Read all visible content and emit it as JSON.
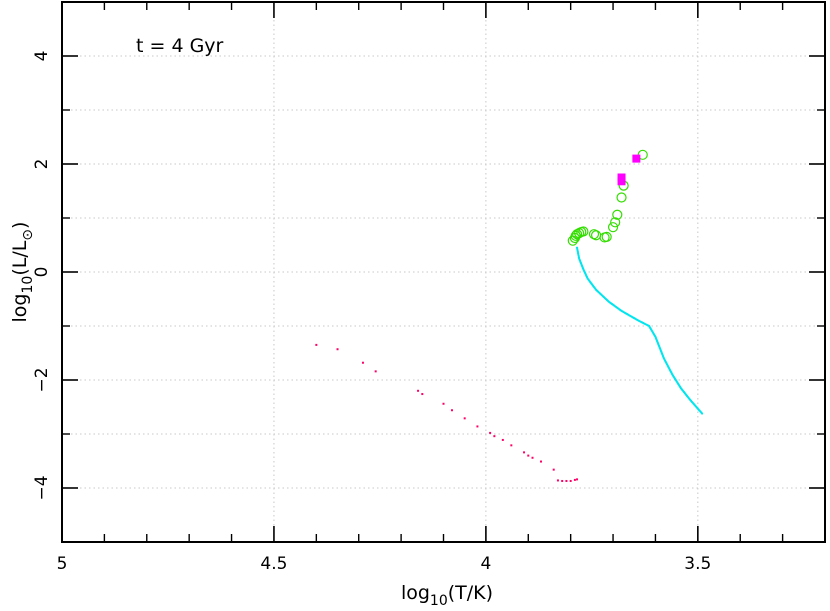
{
  "chart_data": {
    "type": "scatter",
    "title": "",
    "annotation": "t = 4 Gyr",
    "xlabel": {
      "prefix": "log",
      "sub": "10",
      "suffix": "(T/K)"
    },
    "ylabel": {
      "prefix": "log",
      "sub": "10",
      "middle": "(L/L",
      "sub2": "⊙",
      "suffix": ")"
    },
    "xlim": [
      5.0,
      3.2
    ],
    "ylim": [
      -5.0,
      5.0
    ],
    "x_reversed": true,
    "xticks": [
      5,
      4.5,
      4,
      3.5
    ],
    "xtick_labels": [
      "5",
      "4.5",
      "4",
      "3.5"
    ],
    "xminor": [
      4.9,
      4.8,
      4.7,
      4.6,
      4.4,
      4.3,
      4.2,
      4.1,
      3.9,
      3.8,
      3.7,
      3.6,
      3.4,
      3.3
    ],
    "yticks": [
      -4,
      -2,
      0,
      2,
      4
    ],
    "ytick_labels": [
      "−4",
      "−2",
      "0",
      "2",
      "4"
    ],
    "yminor": [
      -5,
      -3,
      -1,
      1,
      3,
      5
    ],
    "grid": true,
    "series": [
      {
        "marker": "dot",
        "color": "#ff0066",
        "points": [
          [
            4.4,
            -1.35
          ],
          [
            4.35,
            -1.43
          ],
          [
            4.29,
            -1.68
          ],
          [
            4.26,
            -1.84
          ],
          [
            4.16,
            -2.2
          ],
          [
            4.15,
            -2.26
          ],
          [
            4.1,
            -2.44
          ],
          [
            4.08,
            -2.56
          ],
          [
            4.05,
            -2.71
          ],
          [
            4.02,
            -2.86
          ],
          [
            3.99,
            -2.98
          ],
          [
            3.98,
            -3.04
          ],
          [
            3.96,
            -3.11
          ],
          [
            3.94,
            -3.21
          ],
          [
            3.91,
            -3.34
          ],
          [
            3.9,
            -3.4
          ],
          [
            3.89,
            -3.44
          ],
          [
            3.87,
            -3.51
          ],
          [
            3.84,
            -3.66
          ],
          [
            3.83,
            -3.86
          ],
          [
            3.82,
            -3.87
          ],
          [
            3.81,
            -3.87
          ],
          [
            3.8,
            -3.87
          ],
          [
            3.79,
            -3.85
          ],
          [
            3.785,
            -3.84
          ]
        ]
      },
      {
        "marker": "dot",
        "color": "#00e5ee",
        "path": [
          [
            3.785,
            0.45
          ],
          [
            3.78,
            0.25
          ],
          [
            3.77,
            0.05
          ],
          [
            3.76,
            -0.12
          ],
          [
            3.74,
            -0.33
          ],
          [
            3.71,
            -0.55
          ],
          [
            3.68,
            -0.72
          ],
          [
            3.64,
            -0.9
          ],
          [
            3.615,
            -1.0
          ],
          [
            3.6,
            -1.2
          ],
          [
            3.58,
            -1.6
          ],
          [
            3.56,
            -1.9
          ],
          [
            3.54,
            -2.15
          ],
          [
            3.52,
            -2.35
          ],
          [
            3.49,
            -2.62
          ]
        ]
      },
      {
        "marker": "open-circle",
        "color": "#33dd00",
        "points": [
          [
            3.795,
            0.58
          ],
          [
            3.79,
            0.63
          ],
          [
            3.788,
            0.67
          ],
          [
            3.785,
            0.7
          ],
          [
            3.78,
            0.72
          ],
          [
            3.775,
            0.74
          ],
          [
            3.77,
            0.75
          ],
          [
            3.745,
            0.7
          ],
          [
            3.74,
            0.68
          ],
          [
            3.72,
            0.64
          ],
          [
            3.715,
            0.65
          ],
          [
            3.7,
            0.83
          ],
          [
            3.695,
            0.92
          ],
          [
            3.69,
            1.06
          ],
          [
            3.68,
            1.38
          ],
          [
            3.675,
            1.6
          ],
          [
            3.63,
            2.17
          ]
        ]
      },
      {
        "marker": "filled-square",
        "color": "#ff00ff",
        "points": [
          [
            3.68,
            1.68
          ],
          [
            3.68,
            1.75
          ],
          [
            3.645,
            2.1
          ]
        ]
      }
    ]
  }
}
